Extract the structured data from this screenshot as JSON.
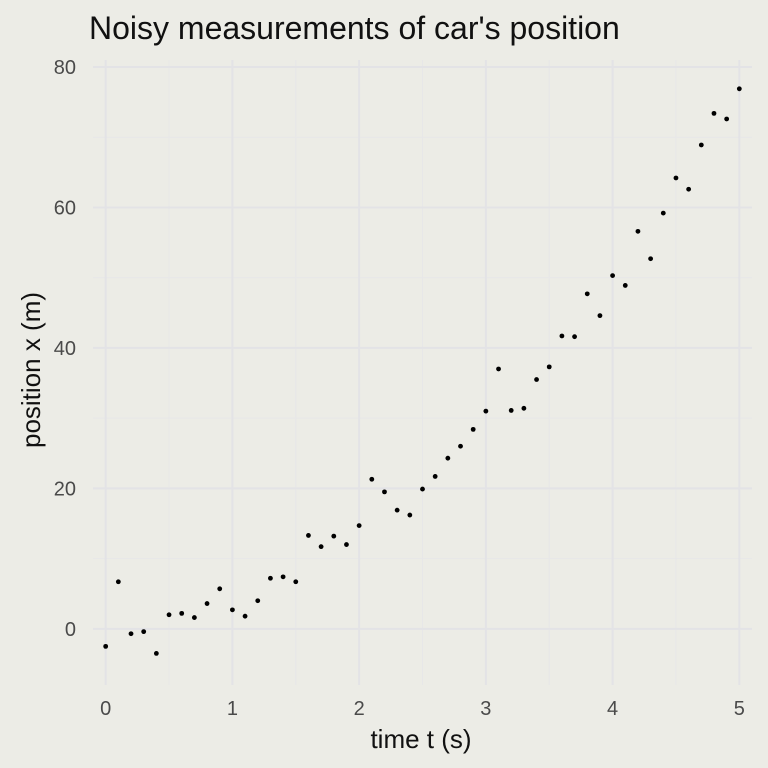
{
  "chart_data": {
    "type": "scatter",
    "title": "Noisy measurements of car's position",
    "xlabel": "time t (s)",
    "ylabel": "position x (m)",
    "xlim": [
      -0.1,
      5.1
    ],
    "ylim": [
      -8,
      81
    ],
    "xticks": [
      0,
      1,
      2,
      3,
      4,
      5
    ],
    "xtick_labels": [
      "0",
      "1",
      "2",
      "3",
      "4",
      "5"
    ],
    "yticks": [
      0,
      20,
      40,
      60,
      80
    ],
    "ytick_labels": [
      "0",
      "20",
      "40",
      "60",
      "80"
    ],
    "grid": true,
    "legend": "none",
    "colors": {
      "background": "#ecece6",
      "points": "#000000",
      "grid": "#e3e3e6"
    },
    "series": [
      {
        "x": [
          0.0,
          0.1,
          0.2,
          0.3,
          0.4,
          0.5,
          0.6,
          0.7,
          0.8,
          0.9,
          1.0,
          1.1,
          1.2,
          1.3,
          1.4,
          1.5,
          1.6,
          1.7,
          1.8,
          1.9,
          2.0,
          2.1,
          2.2,
          2.3,
          2.4,
          2.5,
          2.6,
          2.7,
          2.8,
          2.9,
          3.0,
          3.1,
          3.2,
          3.3,
          3.4,
          3.5,
          3.6,
          3.7,
          3.8,
          3.9,
          4.0,
          4.1,
          4.2,
          4.3,
          4.4,
          4.5,
          4.6,
          4.7,
          4.8,
          4.9,
          5.0
        ],
        "y": [
          -2.5,
          6.7,
          -0.7,
          -0.4,
          -3.5,
          2.0,
          2.2,
          1.6,
          3.6,
          5.7,
          2.7,
          1.8,
          4.0,
          7.2,
          7.4,
          6.7,
          13.3,
          11.7,
          13.2,
          12.0,
          14.7,
          21.3,
          19.5,
          16.9,
          16.2,
          19.9,
          21.7,
          24.3,
          26.0,
          28.4,
          31.0,
          37.0,
          31.1,
          31.4,
          35.5,
          37.3,
          41.7,
          41.6,
          47.7,
          44.6,
          50.3,
          48.9,
          56.6,
          52.7,
          59.2,
          64.2,
          62.6,
          68.9,
          73.4,
          72.6,
          76.9
        ]
      }
    ]
  }
}
